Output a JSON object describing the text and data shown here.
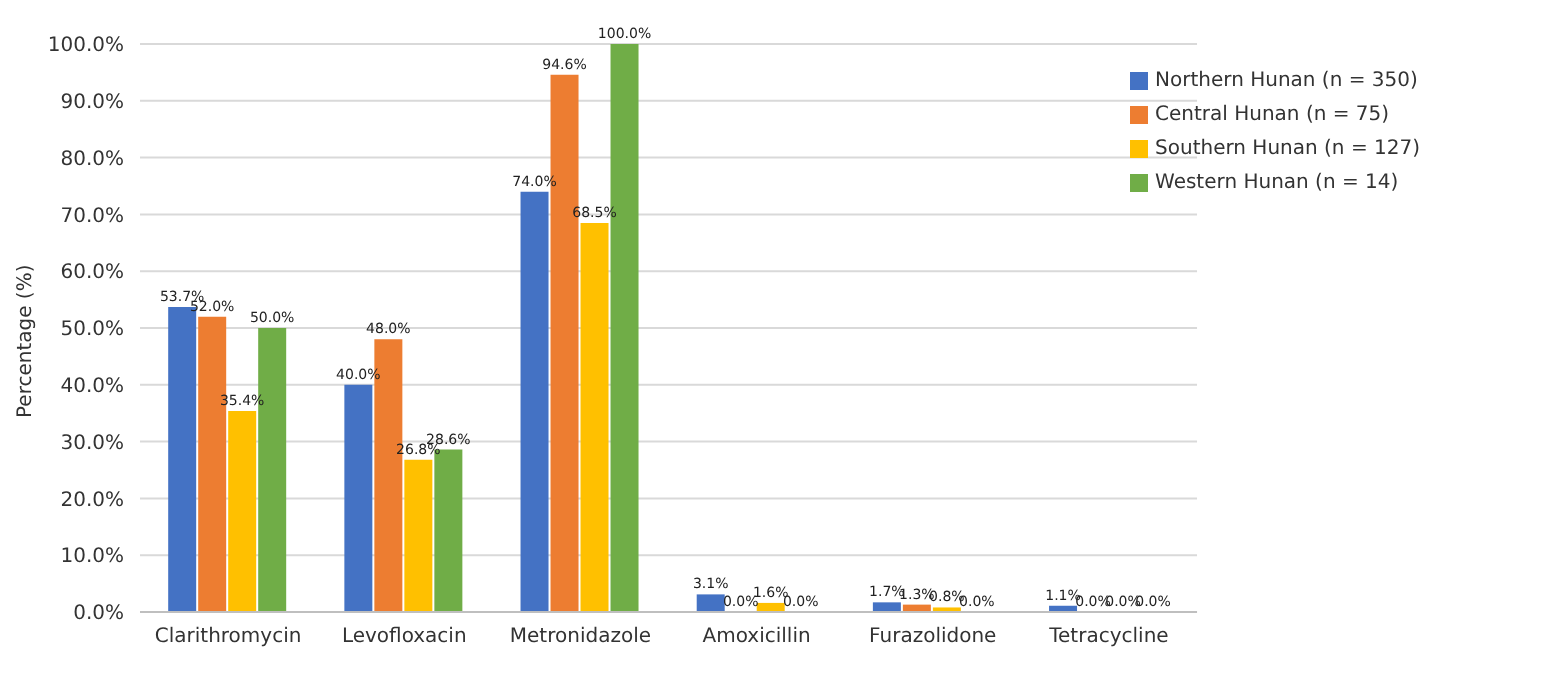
{
  "chart_data": {
    "type": "bar",
    "ylabel": "Percentage (%)",
    "categories": [
      "Clarithromycin",
      "Levofloxacin",
      "Metronidazole",
      "Amoxicillin",
      "Furazolidone",
      "Tetracycline"
    ],
    "series": [
      {
        "name": "Northern Hunan (n = 350)",
        "color": "#4472c4",
        "values": [
          53.7,
          40.0,
          74.0,
          3.1,
          1.7,
          1.1
        ],
        "value_labels": [
          "53.7%",
          "40.0%",
          "74.0%",
          "3.1%",
          "1.7%",
          "1.1%"
        ]
      },
      {
        "name": "Central Hunan (n = 75)",
        "color": "#ed7d31",
        "values": [
          52.0,
          48.0,
          94.6,
          0.0,
          1.3,
          0.0
        ],
        "value_labels": [
          "52.0%",
          "48.0%",
          "94.6%",
          "0.0%",
          "1.3%",
          "0.0%"
        ]
      },
      {
        "name": "Southern Hunan (n = 127)",
        "color": "#ffc000",
        "values": [
          35.4,
          26.8,
          68.5,
          1.6,
          0.8,
          0.0
        ],
        "value_labels": [
          "35.4%",
          "26.8%",
          "68.5%",
          "1.6%",
          "0.8%",
          "0.0%"
        ]
      },
      {
        "name": "Western Hunan (n = 14)",
        "color": "#70ad47",
        "values": [
          50.0,
          28.6,
          100.0,
          0.0,
          0.0,
          0.0
        ],
        "value_labels": [
          "50.0%",
          "28.6%",
          "100.0%",
          "0.0%",
          "0.0%",
          "0.0%"
        ]
      }
    ],
    "ylim": [
      0,
      100
    ],
    "yticks": [
      {
        "value": 0,
        "label": "0.0%"
      },
      {
        "value": 10,
        "label": "10.0%"
      },
      {
        "value": 20,
        "label": "20.0%"
      },
      {
        "value": 30,
        "label": "30.0%"
      },
      {
        "value": 40,
        "label": "40.0%"
      },
      {
        "value": 50,
        "label": "50.0%"
      },
      {
        "value": 60,
        "label": "60.0%"
      },
      {
        "value": 70,
        "label": "70.0%"
      },
      {
        "value": 80,
        "label": "80.0%"
      },
      {
        "value": 90,
        "label": "90.0%"
      },
      {
        "value": 100,
        "label": "100.0%"
      }
    ],
    "grid": "y",
    "legend": "top right"
  }
}
